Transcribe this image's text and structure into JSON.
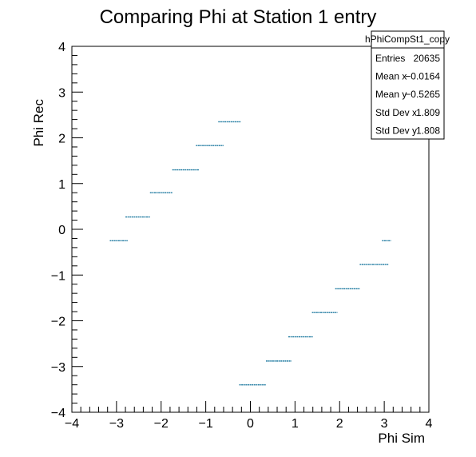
{
  "chart_data": {
    "type": "scatter",
    "title": "Comparing Phi at Station 1 entry",
    "xlabel": "Phi Sim",
    "ylabel": "Phi Rec",
    "xlim": [
      -4,
      4
    ],
    "ylim": [
      -4,
      4
    ],
    "x_ticks": [
      "−4",
      "−3",
      "−2",
      "−1",
      "0",
      "1",
      "2",
      "3",
      "4"
    ],
    "y_ticks": [
      "−4",
      "−3",
      "−2",
      "−1",
      "0",
      "1",
      "2",
      "3",
      "4"
    ],
    "grid": false,
    "legend": "none",
    "marker_color": "#1f7aa0",
    "segments": [
      {
        "x0": -3.15,
        "x1": -2.75,
        "y": -0.25
      },
      {
        "x0": -2.8,
        "x1": -2.25,
        "y": 0.27
      },
      {
        "x0": -2.25,
        "x1": -1.75,
        "y": 0.8
      },
      {
        "x0": -1.75,
        "x1": -1.15,
        "y": 1.3
      },
      {
        "x0": -1.22,
        "x1": -0.6,
        "y": 1.83
      },
      {
        "x0": -0.72,
        "x1": -0.22,
        "y": 2.35
      },
      {
        "x0": -0.25,
        "x1": 0.35,
        "y": -3.4
      },
      {
        "x0": 0.35,
        "x1": 0.92,
        "y": -2.88
      },
      {
        "x0": 0.85,
        "x1": 1.4,
        "y": -2.35
      },
      {
        "x0": 1.38,
        "x1": 1.95,
        "y": -1.82
      },
      {
        "x0": 1.9,
        "x1": 2.45,
        "y": -1.3
      },
      {
        "x0": 2.45,
        "x1": 3.1,
        "y": -0.77
      },
      {
        "x0": 2.95,
        "x1": 3.15,
        "y": -0.25
      }
    ],
    "stats": {
      "name": "hPhiCompSt1_copy",
      "rows": [
        {
          "label": "Entries",
          "value": "20635"
        },
        {
          "label": "Mean x",
          "value": "−0.0164"
        },
        {
          "label": "Mean y",
          "value": "−0.5265"
        },
        {
          "label": "Std Dev x",
          "value": "1.809"
        },
        {
          "label": "Std Dev y",
          "value": "1.808"
        }
      ]
    }
  }
}
